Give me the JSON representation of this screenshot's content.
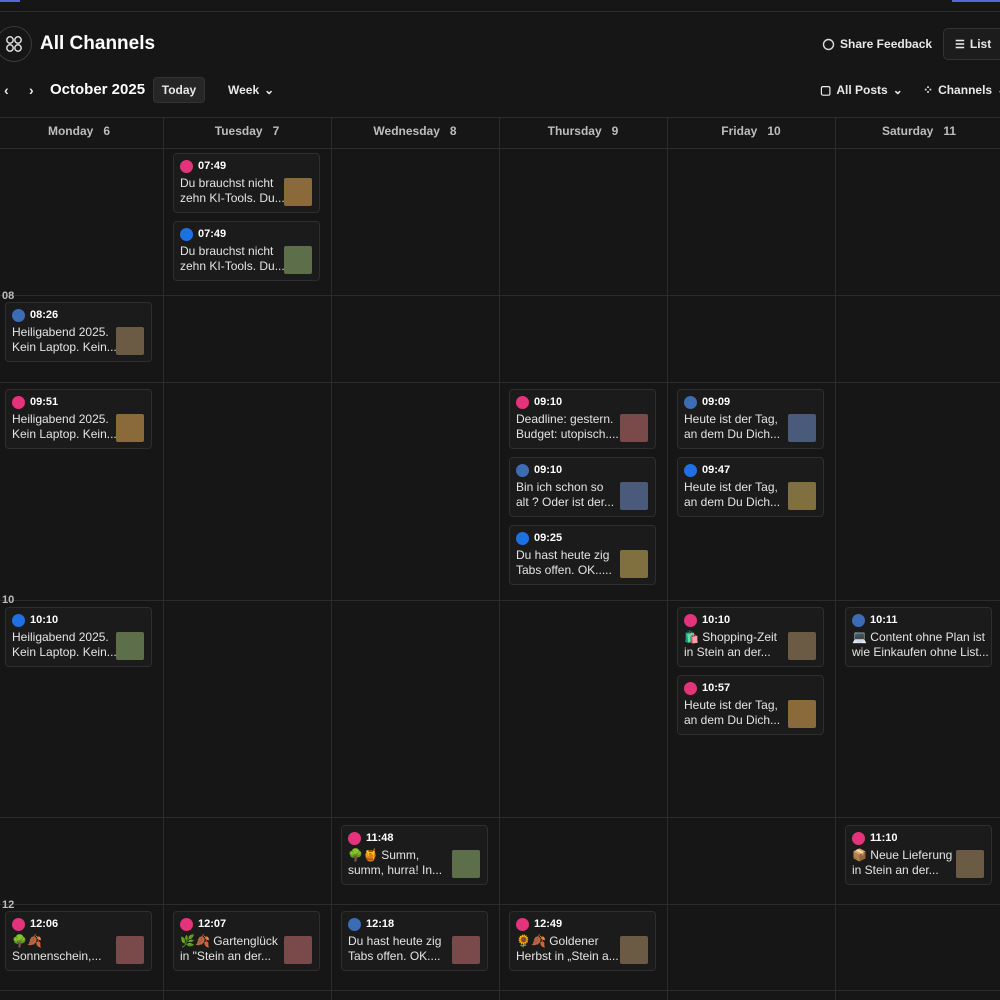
{
  "header": {
    "title": "All Channels",
    "feedback": "Share Feedback",
    "view": "List"
  },
  "toolbar": {
    "month": "October 2025",
    "today": "Today",
    "range": "Week",
    "posts_filter": "All Posts",
    "channels_filter": "Channels"
  },
  "hours": [
    "08",
    "10",
    "12"
  ],
  "days": [
    {
      "name": "Monday",
      "date": 6,
      "posts": [
        {
          "platform": "linkedin",
          "time": "08:26",
          "text": [
            "Heiligabend 2025.",
            "Kein Laptop. Kein..."
          ]
        },
        {
          "platform": "instagram",
          "time": "09:51",
          "text": [
            "Heiligabend 2025.",
            "Kein Laptop. Kein..."
          ]
        },
        {
          "platform": "facebook",
          "time": "10:10",
          "text": [
            "Heiligabend 2025.",
            "Kein Laptop. Kein..."
          ]
        },
        {
          "platform": "instagram",
          "time": "12:06",
          "text": [
            "🌳🍂",
            "Sonnenschein,..."
          ]
        }
      ]
    },
    {
      "name": "Tuesday",
      "date": 7,
      "posts": [
        {
          "platform": "instagram",
          "time": "07:49",
          "text": [
            "Du brauchst nicht",
            "zehn KI-Tools. Du..."
          ]
        },
        {
          "platform": "facebook",
          "time": "07:49",
          "text": [
            "Du brauchst nicht",
            "zehn KI-Tools. Du..."
          ]
        },
        {
          "platform": "instagram",
          "time": "12:07",
          "text": [
            "🌿🍂 Gartenglück",
            "in \"Stein an der..."
          ]
        }
      ]
    },
    {
      "name": "Wednesday",
      "date": 8,
      "posts": [
        {
          "platform": "instagram",
          "time": "11:48",
          "text": [
            "🌳🍯 Summ,",
            "summ, hurra! In..."
          ]
        },
        {
          "platform": "linkedin",
          "time": "12:18",
          "text": [
            "Du hast heute zig",
            "Tabs offen. OK...."
          ]
        }
      ]
    },
    {
      "name": "Thursday",
      "date": 9,
      "posts": [
        {
          "platform": "instagram",
          "time": "09:10",
          "text": [
            "Deadline: gestern.",
            "Budget: utopisch...."
          ]
        },
        {
          "platform": "linkedin",
          "time": "09:10",
          "text": [
            "Bin ich schon so",
            "alt ? Oder ist der..."
          ]
        },
        {
          "platform": "facebook",
          "time": "09:25",
          "text": [
            "Du hast heute zig",
            "Tabs offen. OK....."
          ]
        },
        {
          "platform": "instagram",
          "time": "12:49",
          "text": [
            "🌻🍂 Goldener",
            "Herbst in „Stein a..."
          ]
        }
      ]
    },
    {
      "name": "Friday",
      "date": 10,
      "posts": [
        {
          "platform": "linkedin",
          "time": "09:09",
          "text": [
            "Heute ist der Tag,",
            "an dem Du Dich..."
          ]
        },
        {
          "platform": "facebook",
          "time": "09:47",
          "text": [
            "Heute ist der Tag,",
            "an dem Du Dich..."
          ]
        },
        {
          "platform": "instagram",
          "time": "10:10",
          "text": [
            "🛍️ Shopping-Zeit",
            "in Stein an der..."
          ]
        },
        {
          "platform": "instagram",
          "time": "10:57",
          "text": [
            "Heute ist der Tag,",
            "an dem Du Dich..."
          ]
        }
      ]
    },
    {
      "name": "Saturday",
      "date": 11,
      "posts": [
        {
          "platform": "linkedin",
          "time": "10:11",
          "text": [
            "💻 Content ohne Plan ist",
            "wie Einkaufen ohne List..."
          ]
        },
        {
          "platform": "instagram",
          "time": "11:10",
          "text": [
            "📦 Neue Lieferung",
            "in Stein an der..."
          ]
        }
      ]
    }
  ]
}
